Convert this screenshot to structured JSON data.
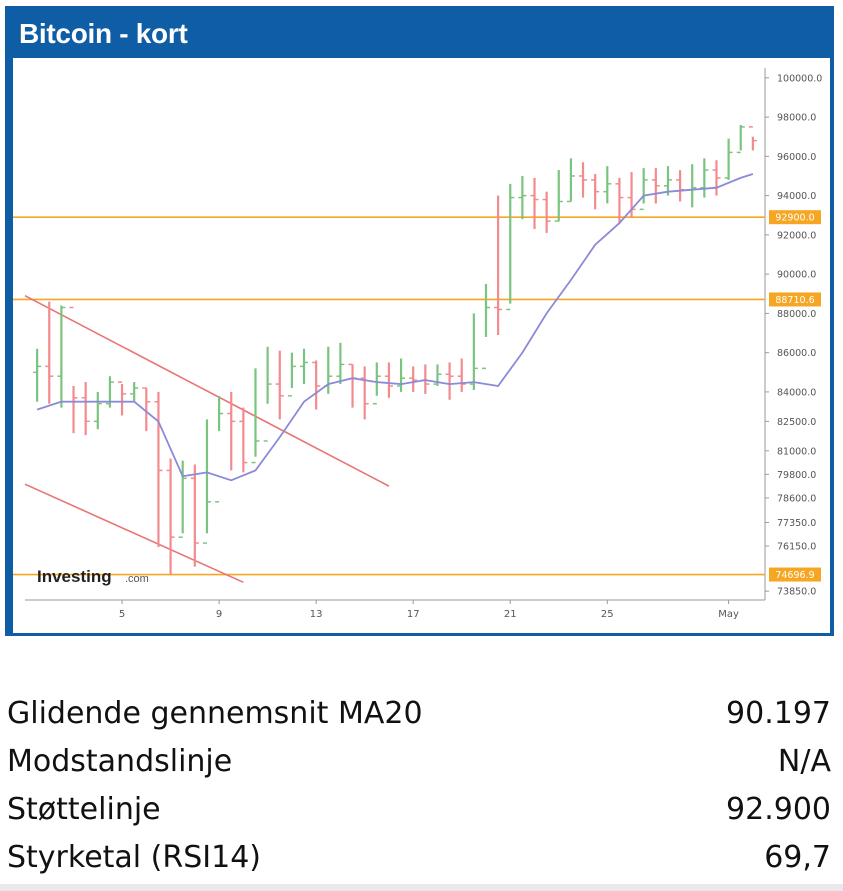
{
  "header": {
    "title": "Bitcoin - kort"
  },
  "colors": {
    "frame": "#0f5ea5",
    "up_candle": "#7bc47f",
    "down_candle": "#f28a8e",
    "ma_line": "#8a8ad8",
    "level_line": "#f5a623",
    "trend_line": "#e87575"
  },
  "chart_data": {
    "type": "line",
    "title": "Bitcoin - kort",
    "xlabel": "",
    "ylabel": "",
    "x_ticks": [
      "5",
      "9",
      "13",
      "17",
      "21",
      "25",
      "May"
    ],
    "y_ticks": [
      "100000.0",
      "98000.0",
      "96000.0",
      "94000.0",
      "92000.0",
      "90000.0",
      "88000.0",
      "86000.0",
      "84000.0",
      "82500.0",
      "81000.0",
      "79800.0",
      "78600.0",
      "77350.0",
      "76150.0",
      "73850.0"
    ],
    "ylim": [
      73400,
      100500
    ],
    "level_lines": [
      {
        "label": "92900.0",
        "value": 92900
      },
      {
        "label": "88710.6",
        "value": 88710
      },
      {
        "label": "74696.9",
        "value": 74697
      }
    ],
    "series": [
      {
        "name": "",
        "kind": "candles",
        "x": [
          1,
          1.5,
          2,
          2.5,
          3,
          3.5,
          4,
          4.5,
          5,
          5.5,
          6,
          6.5,
          7,
          7.5,
          8,
          8.5,
          9,
          9.5,
          10,
          10.5,
          11,
          11.5,
          12,
          12.5,
          13,
          13.5,
          14,
          14.5,
          15,
          15.5,
          16,
          16.5,
          17,
          17.5,
          18,
          18.5,
          19,
          19.5,
          20,
          20.5,
          21,
          21.5,
          22,
          22.5,
          23,
          23.5,
          24,
          24.5,
          25,
          25.5,
          26,
          26.5,
          27,
          27.5,
          28,
          28.5,
          29,
          29.5,
          30,
          30.5
        ],
        "close": [
          85300,
          84800,
          88300,
          83700,
          82500,
          83400,
          84500,
          83900,
          84200,
          83500,
          80000,
          76600,
          79600,
          76300,
          78400,
          82900,
          82500,
          80400,
          81500,
          84400,
          83800,
          85300,
          85500,
          84300,
          84800,
          85400,
          84700,
          83400,
          84800,
          84300,
          84700,
          84600,
          84400,
          84900,
          84800,
          84400,
          85200,
          88300,
          88200,
          93900,
          94000,
          93800,
          92700,
          93700,
          95000,
          94800,
          94200,
          94600,
          93900,
          93300,
          94800,
          94500,
          94800,
          94300,
          94400,
          95300,
          94900,
          96200,
          97500,
          96800
        ],
        "low": [
          83500,
          83400,
          83200,
          81900,
          81800,
          82100,
          83200,
          82800,
          83500,
          82000,
          76100,
          74700,
          76800,
          75100,
          76800,
          82000,
          80000,
          79900,
          80700,
          83400,
          82600,
          84200,
          84400,
          83100,
          83900,
          84400,
          83200,
          82600,
          83800,
          83700,
          84000,
          84000,
          83900,
          84300,
          83600,
          84000,
          84100,
          86800,
          86900,
          88500,
          92800,
          92300,
          92100,
          92700,
          93700,
          93900,
          93300,
          93600,
          92600,
          92900,
          93600,
          93600,
          94000,
          93700,
          93400,
          93900,
          94000,
          94800,
          96300,
          96300
        ],
        "high": [
          86200,
          88600,
          88400,
          84300,
          84500,
          84000,
          84800,
          84400,
          84500,
          84200,
          84000,
          80600,
          80500,
          80300,
          82600,
          83800,
          84000,
          83200,
          85200,
          86300,
          86100,
          86000,
          86200,
          85600,
          86300,
          86500,
          85400,
          85300,
          85500,
          85500,
          85700,
          85300,
          85400,
          85400,
          85500,
          85700,
          88000,
          89500,
          94000,
          94600,
          95000,
          94900,
          94200,
          95300,
          95900,
          95700,
          95100,
          95500,
          94900,
          95200,
          95400,
          95400,
          95500,
          95300,
          95600,
          95900,
          95800,
          96900,
          97600,
          97000
        ]
      },
      {
        "name": "",
        "kind": "line",
        "x": [
          1,
          2,
          3,
          4,
          5,
          6,
          7,
          8,
          9,
          10,
          11,
          12,
          13,
          14,
          15,
          16,
          17,
          18,
          19,
          20,
          21,
          22,
          23,
          24,
          25,
          26,
          27,
          28,
          29,
          30,
          30.5
        ],
        "values": [
          83100,
          83500,
          83500,
          83500,
          83500,
          82500,
          79700,
          79900,
          79500,
          80000,
          81700,
          83500,
          84400,
          84700,
          84500,
          84400,
          84600,
          84400,
          84500,
          84300,
          86000,
          88000,
          89700,
          91500,
          92600,
          94000,
          94200,
          94300,
          94400,
          94900,
          95100
        ]
      }
    ],
    "trend_lines": [
      {
        "from": [
          0.5,
          88900
        ],
        "to": [
          15.5,
          79200
        ]
      },
      {
        "from": [
          0.5,
          79300
        ],
        "to": [
          9.5,
          74300
        ]
      }
    ]
  },
  "stats": [
    {
      "label": "Glidende gennemsnit MA20",
      "value": "90.197"
    },
    {
      "label": "Modstandslinje",
      "value": "N/A"
    },
    {
      "label": "Støttelinje",
      "value": "92.900"
    },
    {
      "label": "Styrketal (RSI14)",
      "value": "69,7"
    }
  ]
}
